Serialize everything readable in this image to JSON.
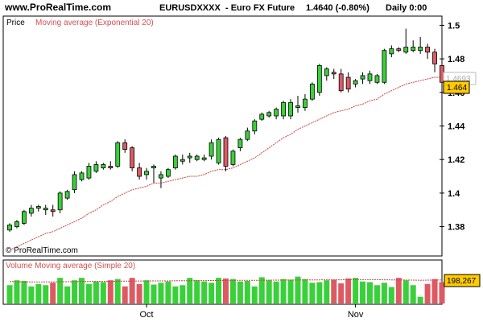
{
  "header": {
    "site": "www.ProRealTime.com",
    "symbol": "EURUSDXXXX",
    "instrument": "- Euro FX Future",
    "quote": "1.4640 (-0.80%)",
    "period": "Daily 0:00"
  },
  "colors": {
    "bull": "#39d139",
    "bear": "#dd5a63",
    "ema": "#cc4444",
    "volume_avg": "#cc4444",
    "label_bg": "#ffcc00",
    "border": "#000000",
    "legend_text": "#d25050"
  },
  "chart_data": [
    {
      "type": "candlestick",
      "panel_label": "Price",
      "indicator_label": "Moving average (Exponential 20)",
      "watermark": "© ProRealTime.com",
      "ylim": [
        1.363,
        1.505
      ],
      "y_ticks": [
        "1.38",
        "1.4",
        "1.42",
        "1.44",
        "1.46",
        "1.48",
        "1.5"
      ],
      "right_labels": {
        "gray": "1.4693",
        "current": "1.464"
      },
      "x_ticks": [
        {
          "label": "Oct",
          "index": 19
        },
        {
          "label": "Nov",
          "index": 48
        }
      ],
      "candles": [
        [
          1.378,
          1.382,
          1.377,
          1.381
        ],
        [
          1.38,
          1.384,
          1.379,
          1.383
        ],
        [
          1.382,
          1.39,
          1.381,
          1.389
        ],
        [
          1.388,
          1.393,
          1.386,
          1.391
        ],
        [
          1.391,
          1.393,
          1.389,
          1.392
        ],
        [
          1.39,
          1.393,
          1.387,
          1.391
        ],
        [
          1.39,
          1.393,
          1.386,
          1.389
        ],
        [
          1.39,
          1.401,
          1.388,
          1.4
        ],
        [
          1.397,
          1.402,
          1.396,
          1.401
        ],
        [
          1.402,
          1.413,
          1.4,
          1.411
        ],
        [
          1.408,
          1.413,
          1.407,
          1.412
        ],
        [
          1.409,
          1.418,
          1.408,
          1.416
        ],
        [
          1.413,
          1.419,
          1.412,
          1.417
        ],
        [
          1.415,
          1.418,
          1.414,
          1.417
        ],
        [
          1.416,
          1.419,
          1.414,
          1.415
        ],
        [
          1.416,
          1.431,
          1.415,
          1.43
        ],
        [
          1.43,
          1.432,
          1.424,
          1.426
        ],
        [
          1.427,
          1.428,
          1.413,
          1.415
        ],
        [
          1.415,
          1.418,
          1.408,
          1.41
        ],
        [
          1.411,
          1.415,
          1.408,
          1.413
        ],
        [
          1.415,
          1.417,
          1.406,
          1.416
        ],
        [
          1.409,
          1.413,
          1.403,
          1.411
        ],
        [
          1.41,
          1.415,
          1.409,
          1.414
        ],
        [
          1.415,
          1.423,
          1.414,
          1.422
        ],
        [
          1.419,
          1.423,
          1.417,
          1.42
        ],
        [
          1.421,
          1.424,
          1.418,
          1.422
        ],
        [
          1.42,
          1.423,
          1.419,
          1.422
        ],
        [
          1.42,
          1.423,
          1.419,
          1.421
        ],
        [
          1.422,
          1.432,
          1.42,
          1.43
        ],
        [
          1.418,
          1.433,
          1.417,
          1.432
        ],
        [
          1.433,
          1.434,
          1.413,
          1.416
        ],
        [
          1.417,
          1.426,
          1.416,
          1.425
        ],
        [
          1.427,
          1.433,
          1.425,
          1.432
        ],
        [
          1.432,
          1.439,
          1.431,
          1.437
        ],
        [
          1.437,
          1.444,
          1.435,
          1.443
        ],
        [
          1.444,
          1.448,
          1.443,
          1.447
        ],
        [
          1.446,
          1.449,
          1.445,
          1.448
        ],
        [
          1.446,
          1.451,
          1.444,
          1.45
        ],
        [
          1.446,
          1.455,
          1.444,
          1.454
        ],
        [
          1.446,
          1.456,
          1.444,
          1.454
        ],
        [
          1.451,
          1.458,
          1.448,
          1.452
        ],
        [
          1.451,
          1.459,
          1.449,
          1.456
        ],
        [
          1.456,
          1.466,
          1.455,
          1.465
        ],
        [
          1.46,
          1.477,
          1.458,
          1.476
        ],
        [
          1.47,
          1.475,
          1.467,
          1.474
        ],
        [
          1.472,
          1.474,
          1.468,
          1.471
        ],
        [
          1.471,
          1.474,
          1.46,
          1.461
        ],
        [
          1.469,
          1.472,
          1.46,
          1.462
        ],
        [
          1.465,
          1.468,
          1.463,
          1.467
        ],
        [
          1.468,
          1.472,
          1.465,
          1.47
        ],
        [
          1.467,
          1.473,
          1.465,
          1.471
        ],
        [
          1.466,
          1.471,
          1.465,
          1.47
        ],
        [
          1.466,
          1.486,
          1.465,
          1.485
        ],
        [
          1.483,
          1.488,
          1.481,
          1.486
        ],
        [
          1.486,
          1.487,
          1.484,
          1.485
        ],
        [
          1.484,
          1.498,
          1.483,
          1.487
        ],
        [
          1.485,
          1.491,
          1.484,
          1.487
        ],
        [
          1.485,
          1.493,
          1.483,
          1.487
        ],
        [
          1.487,
          1.489,
          1.48,
          1.484
        ],
        [
          1.484,
          1.486,
          1.472,
          1.477
        ],
        [
          1.476,
          1.479,
          1.464,
          1.466
        ]
      ],
      "ema": [
        1.366,
        1.368,
        1.37,
        1.372,
        1.374,
        1.376,
        1.377,
        1.379,
        1.381,
        1.383,
        1.385,
        1.388,
        1.39,
        1.393,
        1.395,
        1.398,
        1.4,
        1.402,
        1.403,
        1.404,
        1.406,
        1.406,
        1.407,
        1.408,
        1.409,
        1.41,
        1.41,
        1.411,
        1.413,
        1.414,
        1.414,
        1.415,
        1.417,
        1.419,
        1.421,
        1.424,
        1.427,
        1.43,
        1.433,
        1.435,
        1.438,
        1.44,
        1.442,
        1.444,
        1.446,
        1.448,
        1.449,
        1.45,
        1.452,
        1.453,
        1.455,
        1.456,
        1.459,
        1.461,
        1.463,
        1.465,
        1.466,
        1.467,
        1.468,
        1.469,
        1.469
      ]
    },
    {
      "type": "bar",
      "panel_label": "Volume Moving average (Simple 20)",
      "ylim": [
        0,
        310000
      ],
      "current_label": "198,267",
      "volumes": [
        150000,
        190000,
        185000,
        140000,
        160000,
        150000,
        170000,
        210000,
        140000,
        190000,
        210000,
        160000,
        180000,
        175000,
        190000,
        200000,
        140000,
        210000,
        160000,
        190000,
        155000,
        170000,
        180000,
        140000,
        150000,
        210000,
        190000,
        180000,
        170000,
        210000,
        205000,
        200000,
        180000,
        185000,
        140000,
        215000,
        190000,
        180000,
        200000,
        195000,
        220000,
        200000,
        170000,
        175000,
        190000,
        195000,
        165000,
        205000,
        210000,
        180000,
        175000,
        150000,
        170000,
        135000,
        210000,
        190000,
        150000,
        55000,
        160000,
        200000,
        175000
      ],
      "average": [
        180000,
        178000,
        177000,
        176000,
        176000,
        176000,
        177000,
        178000,
        178000,
        179000,
        180000,
        180000,
        181000,
        181000,
        182000,
        183000,
        183000,
        183000,
        184000,
        184000,
        185000,
        185000,
        185000,
        186000,
        186000,
        186000,
        187000,
        187000,
        188000,
        188000,
        188000,
        189000,
        189000,
        190000,
        190000,
        190000,
        191000,
        191000,
        192000,
        192000,
        192000,
        193000,
        193000,
        193000,
        194000,
        194000,
        194000,
        195000,
        195000,
        195000,
        195000,
        195000,
        194000,
        193000,
        193000,
        192000,
        191000,
        190000,
        191000,
        192000,
        192000
      ]
    }
  ]
}
